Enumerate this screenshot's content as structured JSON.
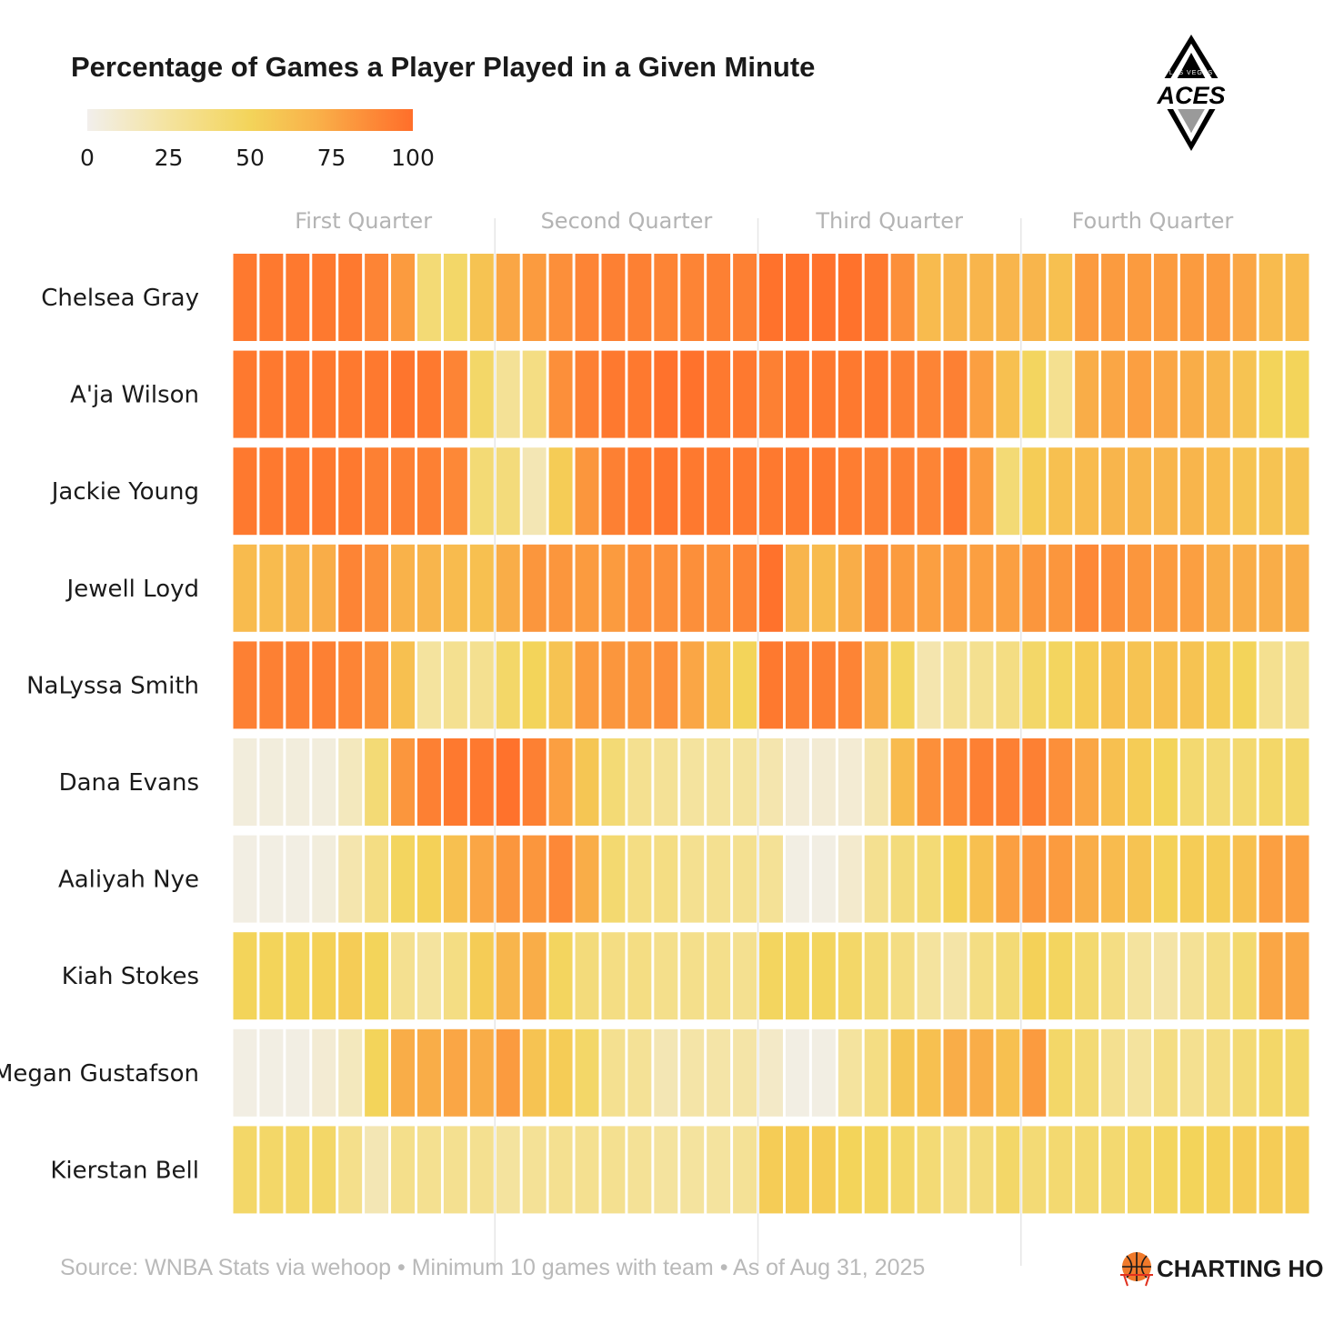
{
  "chart_data": {
    "type": "heatmap",
    "title": "Percentage of Games a Player Played in a Given Minute",
    "colorbar": {
      "ticks": [
        "0",
        "25",
        "50",
        "75",
        "100"
      ],
      "range": [
        0,
        100
      ],
      "stops": [
        "#f2efec",
        "#f4e39e",
        "#f3d45a",
        "#f9b24a",
        "#fc8f3a",
        "#ff6e2a"
      ]
    },
    "quarters": [
      "First Quarter",
      "Second Quarter",
      "Third Quarter",
      "Fourth Quarter"
    ],
    "minutes_per_quarter": 10,
    "players": [
      "Chelsea Gray",
      "A'ja Wilson",
      "Jackie Young",
      "Jewell Loyd",
      "NaLyssa Smith",
      "Dana Evans",
      "Aaliyah Nye",
      "Kiah Stokes",
      "Megan Gustafson",
      "Kierstan Bell"
    ],
    "values": [
      [
        95,
        95,
        95,
        95,
        95,
        90,
        80,
        40,
        45,
        60,
        75,
        80,
        85,
        90,
        92,
        92,
        90,
        90,
        92,
        92,
        98,
        98,
        98,
        98,
        95,
        85,
        65,
        68,
        68,
        68,
        68,
        62,
        80,
        80,
        80,
        80,
        80,
        80,
        75,
        65,
        65
      ],
      [
        95,
        95,
        95,
        95,
        95,
        95,
        97,
        95,
        90,
        45,
        28,
        35,
        85,
        92,
        95,
        95,
        98,
        98,
        95,
        95,
        92,
        95,
        95,
        95,
        95,
        92,
        90,
        92,
        78,
        62,
        48,
        30,
        72,
        75,
        78,
        75,
        72,
        68,
        60,
        50,
        50
      ],
      [
        95,
        95,
        95,
        95,
        95,
        92,
        92,
        92,
        88,
        40,
        38,
        18,
        55,
        82,
        92,
        95,
        97,
        95,
        95,
        95,
        95,
        95,
        95,
        93,
        92,
        92,
        90,
        95,
        80,
        40,
        55,
        62,
        65,
        68,
        68,
        68,
        68,
        65,
        60,
        60,
        60
      ],
      [
        65,
        65,
        68,
        72,
        90,
        85,
        70,
        68,
        65,
        62,
        72,
        82,
        82,
        80,
        80,
        85,
        85,
        85,
        85,
        90,
        98,
        68,
        65,
        72,
        85,
        80,
        78,
        80,
        78,
        78,
        82,
        82,
        88,
        85,
        82,
        80,
        78,
        72,
        72,
        72,
        72
      ],
      [
        92,
        92,
        92,
        92,
        90,
        85,
        62,
        25,
        30,
        30,
        45,
        50,
        60,
        80,
        82,
        82,
        85,
        75,
        62,
        50,
        95,
        92,
        92,
        90,
        72,
        48,
        20,
        28,
        30,
        35,
        45,
        48,
        55,
        62,
        60,
        62,
        60,
        55,
        50,
        30,
        30
      ],
      [
        5,
        5,
        5,
        5,
        15,
        40,
        82,
        92,
        95,
        95,
        98,
        92,
        78,
        58,
        40,
        30,
        28,
        25,
        25,
        25,
        20,
        8,
        8,
        8,
        20,
        65,
        85,
        88,
        92,
        92,
        92,
        85,
        75,
        62,
        55,
        50,
        42,
        40,
        42,
        45,
        45
      ],
      [
        3,
        3,
        3,
        5,
        20,
        35,
        48,
        52,
        62,
        75,
        82,
        82,
        88,
        72,
        42,
        35,
        35,
        30,
        30,
        30,
        28,
        3,
        3,
        10,
        30,
        38,
        40,
        52,
        62,
        78,
        82,
        80,
        72,
        65,
        60,
        52,
        55,
        55,
        62,
        78,
        78
      ],
      [
        50,
        50,
        50,
        52,
        55,
        50,
        30,
        25,
        35,
        55,
        68,
        72,
        48,
        38,
        35,
        35,
        32,
        32,
        32,
        30,
        48,
        48,
        48,
        45,
        40,
        35,
        25,
        22,
        35,
        40,
        52,
        48,
        42,
        35,
        25,
        22,
        28,
        35,
        42,
        75,
        75
      ],
      [
        3,
        3,
        3,
        8,
        15,
        50,
        72,
        72,
        75,
        72,
        80,
        60,
        55,
        45,
        30,
        28,
        18,
        22,
        22,
        22,
        12,
        3,
        3,
        25,
        35,
        58,
        62,
        72,
        72,
        62,
        80,
        45,
        40,
        30,
        25,
        35,
        30,
        35,
        40,
        45,
        45
      ],
      [
        45,
        45,
        45,
        45,
        32,
        18,
        32,
        30,
        30,
        30,
        25,
        28,
        30,
        30,
        30,
        28,
        25,
        25,
        25,
        28,
        55,
        55,
        55,
        50,
        48,
        45,
        40,
        35,
        38,
        45,
        40,
        42,
        42,
        42,
        45,
        48,
        50,
        52,
        55,
        55,
        55
      ]
    ]
  },
  "source_note": "Source: WNBA Stats via wehoop • Minimum 10 games with team • As of Aug 31, 2025",
  "team_logo": {
    "word": "ACES",
    "small": "LAS VEGAS"
  },
  "brand": {
    "name": "CHARTING HOOPS"
  }
}
